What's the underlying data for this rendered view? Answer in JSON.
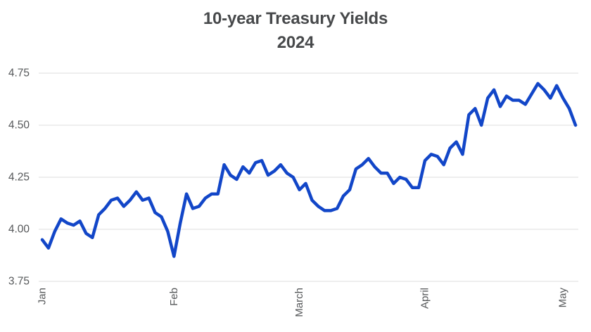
{
  "colors": {
    "line": "#1246c8",
    "grid": "#e3e3e3",
    "title": "#47494b",
    "tick_label": "#56585a",
    "background": "#ffffff"
  },
  "chart_data": {
    "type": "line",
    "title_lines": [
      "10-year Treasury Yields",
      "2024"
    ],
    "xlabel": "",
    "ylabel": "",
    "legend": "none",
    "grid": "horizontal",
    "ylim": [
      3.75,
      4.75
    ],
    "y_ticks": [
      {
        "label": "3.75",
        "value": 3.75
      },
      {
        "label": "4.00",
        "value": 4.0
      },
      {
        "label": "4.25",
        "value": 4.25
      },
      {
        "label": "4.50",
        "value": 4.5
      },
      {
        "label": "4.75",
        "value": 4.75
      }
    ],
    "x_ticks": [
      {
        "label": "Jan",
        "index": 0
      },
      {
        "label": "Feb",
        "index": 21
      },
      {
        "label": "March",
        "index": 41
      },
      {
        "label": "April",
        "index": 61
      },
      {
        "label": "May",
        "index": 83
      }
    ],
    "x": [
      "2024-01-02",
      "2024-01-03",
      "2024-01-04",
      "2024-01-05",
      "2024-01-08",
      "2024-01-09",
      "2024-01-10",
      "2024-01-11",
      "2024-01-12",
      "2024-01-16",
      "2024-01-17",
      "2024-01-18",
      "2024-01-19",
      "2024-01-22",
      "2024-01-23",
      "2024-01-24",
      "2024-01-25",
      "2024-01-26",
      "2024-01-29",
      "2024-01-30",
      "2024-01-31",
      "2024-02-01",
      "2024-02-02",
      "2024-02-05",
      "2024-02-06",
      "2024-02-07",
      "2024-02-08",
      "2024-02-09",
      "2024-02-12",
      "2024-02-13",
      "2024-02-14",
      "2024-02-15",
      "2024-02-16",
      "2024-02-20",
      "2024-02-21",
      "2024-02-22",
      "2024-02-23",
      "2024-02-26",
      "2024-02-27",
      "2024-02-28",
      "2024-02-29",
      "2024-03-01",
      "2024-03-04",
      "2024-03-05",
      "2024-03-06",
      "2024-03-07",
      "2024-03-08",
      "2024-03-11",
      "2024-03-12",
      "2024-03-13",
      "2024-03-14",
      "2024-03-15",
      "2024-03-18",
      "2024-03-19",
      "2024-03-20",
      "2024-03-21",
      "2024-03-22",
      "2024-03-25",
      "2024-03-26",
      "2024-03-27",
      "2024-03-28",
      "2024-04-01",
      "2024-04-02",
      "2024-04-03",
      "2024-04-04",
      "2024-04-05",
      "2024-04-08",
      "2024-04-09",
      "2024-04-10",
      "2024-04-11",
      "2024-04-12",
      "2024-04-15",
      "2024-04-16",
      "2024-04-17",
      "2024-04-18",
      "2024-04-19",
      "2024-04-22",
      "2024-04-23",
      "2024-04-24",
      "2024-04-25",
      "2024-04-26",
      "2024-04-29",
      "2024-04-30",
      "2024-05-01",
      "2024-05-02",
      "2024-05-03"
    ],
    "y": [
      3.95,
      3.91,
      3.99,
      4.05,
      4.03,
      4.02,
      4.04,
      3.98,
      3.96,
      4.07,
      4.1,
      4.14,
      4.15,
      4.11,
      4.14,
      4.18,
      4.14,
      4.15,
      4.08,
      4.06,
      3.99,
      3.87,
      4.03,
      4.17,
      4.1,
      4.11,
      4.15,
      4.17,
      4.17,
      4.31,
      4.26,
      4.24,
      4.3,
      4.27,
      4.32,
      4.33,
      4.26,
      4.28,
      4.31,
      4.27,
      4.25,
      4.19,
      4.22,
      4.14,
      4.11,
      4.09,
      4.09,
      4.1,
      4.16,
      4.19,
      4.29,
      4.31,
      4.34,
      4.3,
      4.27,
      4.27,
      4.22,
      4.25,
      4.24,
      4.2,
      4.2,
      4.33,
      4.36,
      4.35,
      4.31,
      4.39,
      4.42,
      4.36,
      4.55,
      4.58,
      4.5,
      4.63,
      4.67,
      4.59,
      4.64,
      4.62,
      4.62,
      4.6,
      4.65,
      4.7,
      4.67,
      4.63,
      4.69,
      4.63,
      4.58,
      4.5
    ]
  }
}
